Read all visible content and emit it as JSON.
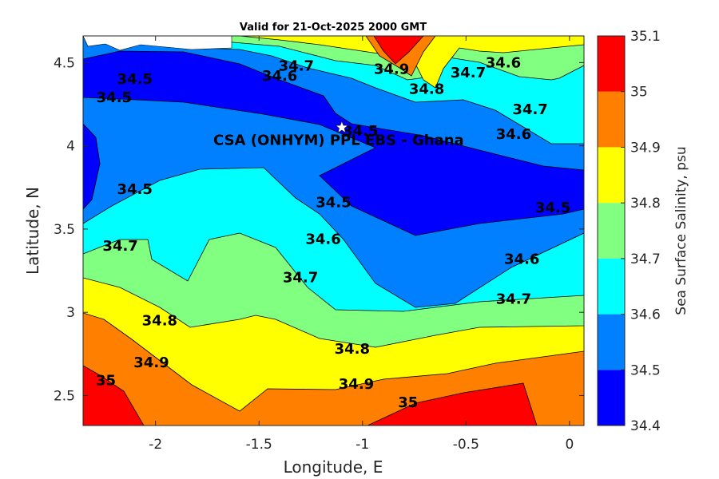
{
  "chart_data": {
    "type": "contour-map",
    "title": "Valid for 21-Oct-2025 2000 GMT",
    "xlabel": "Longitude, E",
    "ylabel": "Latitude, N",
    "xlim": [
      -2.35,
      0.07
    ],
    "ylim": [
      2.32,
      4.66
    ],
    "xticks": [
      -2,
      -1.5,
      -1,
      -0.5,
      0
    ],
    "xtick_labels": [
      "-2",
      "-1.5",
      "-1",
      "-0.5",
      "0"
    ],
    "yticks": [
      2.5,
      3,
      3.5,
      4,
      4.5
    ],
    "ytick_labels": [
      "2.5",
      "3",
      "3.5",
      "4",
      "4.5"
    ],
    "colorbar": {
      "label": "Sea Surface Salinity, psu",
      "levels": [
        34.4,
        34.5,
        34.6,
        34.7,
        34.8,
        34.9,
        35,
        35.1
      ],
      "level_labels": [
        "34.4",
        "34.5",
        "34.6",
        "34.7",
        "34.8",
        "34.9",
        "35",
        "35.1"
      ],
      "colors": [
        "#0000ff",
        "#0080ff",
        "#00ffff",
        "#80ff80",
        "#ffff00",
        "#ff8000",
        "#ff0000"
      ]
    },
    "contour_labels": [
      {
        "text": "34.5",
        "lon": -2.1,
        "lat": 4.4
      },
      {
        "text": "34.5",
        "lon": -2.2,
        "lat": 4.29
      },
      {
        "text": "34.6",
        "lon": -1.4,
        "lat": 4.42
      },
      {
        "text": "34.7",
        "lon": -1.32,
        "lat": 4.48
      },
      {
        "text": "34.9",
        "lon": -0.86,
        "lat": 4.46
      },
      {
        "text": "34.8",
        "lon": -0.69,
        "lat": 4.34
      },
      {
        "text": "34.7",
        "lon": -0.49,
        "lat": 4.44
      },
      {
        "text": "34.6",
        "lon": -0.32,
        "lat": 4.5
      },
      {
        "text": "34.7",
        "lon": -0.19,
        "lat": 4.22
      },
      {
        "text": "34.6",
        "lon": -0.27,
        "lat": 4.07
      },
      {
        "text": "34.5",
        "lon": -1.01,
        "lat": 4.09
      },
      {
        "text": "34.5",
        "lon": -2.1,
        "lat": 3.74
      },
      {
        "text": "34.5",
        "lon": -1.14,
        "lat": 3.66
      },
      {
        "text": "34.5",
        "lon": -0.08,
        "lat": 3.63
      },
      {
        "text": "34.6",
        "lon": -1.19,
        "lat": 3.44
      },
      {
        "text": "34.6",
        "lon": -0.23,
        "lat": 3.32
      },
      {
        "text": "34.7",
        "lon": -2.17,
        "lat": 3.4
      },
      {
        "text": "34.7",
        "lon": -1.3,
        "lat": 3.21
      },
      {
        "text": "34.7",
        "lon": -0.27,
        "lat": 3.08
      },
      {
        "text": "34.8",
        "lon": -1.98,
        "lat": 2.95
      },
      {
        "text": "34.8",
        "lon": -1.05,
        "lat": 2.78
      },
      {
        "text": "34.9",
        "lon": -2.02,
        "lat": 2.7
      },
      {
        "text": "34.9",
        "lon": -1.03,
        "lat": 2.57
      },
      {
        "text": "35",
        "lon": -2.24,
        "lat": 2.59
      },
      {
        "text": "35",
        "lon": -0.78,
        "lat": 2.46
      }
    ],
    "site": {
      "label": "CSA (ONHYM) PPL EBS  - Ghana",
      "lon": -1.1,
      "lat": 4.11
    }
  }
}
